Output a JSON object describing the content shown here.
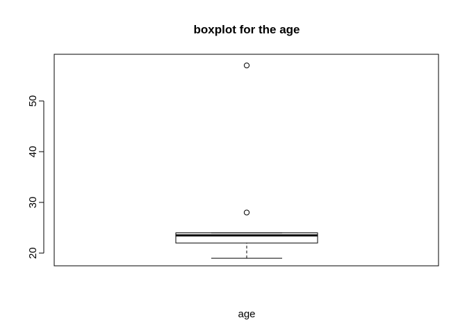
{
  "chart_data": {
    "type": "boxplot",
    "title": "boxplot for the age",
    "xlabel": "age",
    "ylabel": "",
    "yticks": [
      20,
      30,
      40,
      50
    ],
    "ylim": [
      17.5,
      59.2
    ],
    "box": {
      "whisker_low": 19,
      "q1": 22,
      "median": 23.5,
      "q3": 24,
      "whisker_high": 24
    },
    "outliers": [
      28,
      57
    ],
    "grid": false
  }
}
